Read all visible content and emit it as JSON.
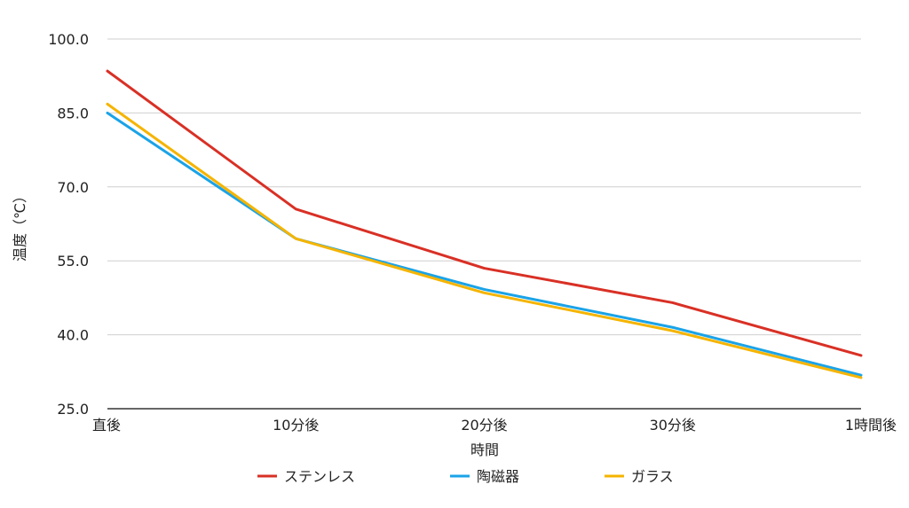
{
  "chart_data": {
    "type": "line",
    "categories": [
      "直後",
      "10分後",
      "20分後",
      "30分後",
      "1時間後"
    ],
    "xlabel": "時間",
    "ylabel": "温度（℃）",
    "ylim": [
      25,
      100
    ],
    "yticks": [
      "25.0",
      "40.0",
      "55.0",
      "70.0",
      "85.0",
      "100.0"
    ],
    "grid": true,
    "legend_position": "bottom",
    "series": [
      {
        "name": "ステンレス",
        "color": "#d93025",
        "values": [
          93.5,
          65.5,
          53.5,
          46.5,
          35.8
        ]
      },
      {
        "name": "陶磁器",
        "color": "#1aa3e8",
        "values": [
          85.0,
          59.5,
          49.2,
          41.5,
          31.8
        ]
      },
      {
        "name": "ガラス",
        "color": "#f5b400",
        "values": [
          86.8,
          59.5,
          48.5,
          40.8,
          31.3
        ]
      }
    ]
  }
}
